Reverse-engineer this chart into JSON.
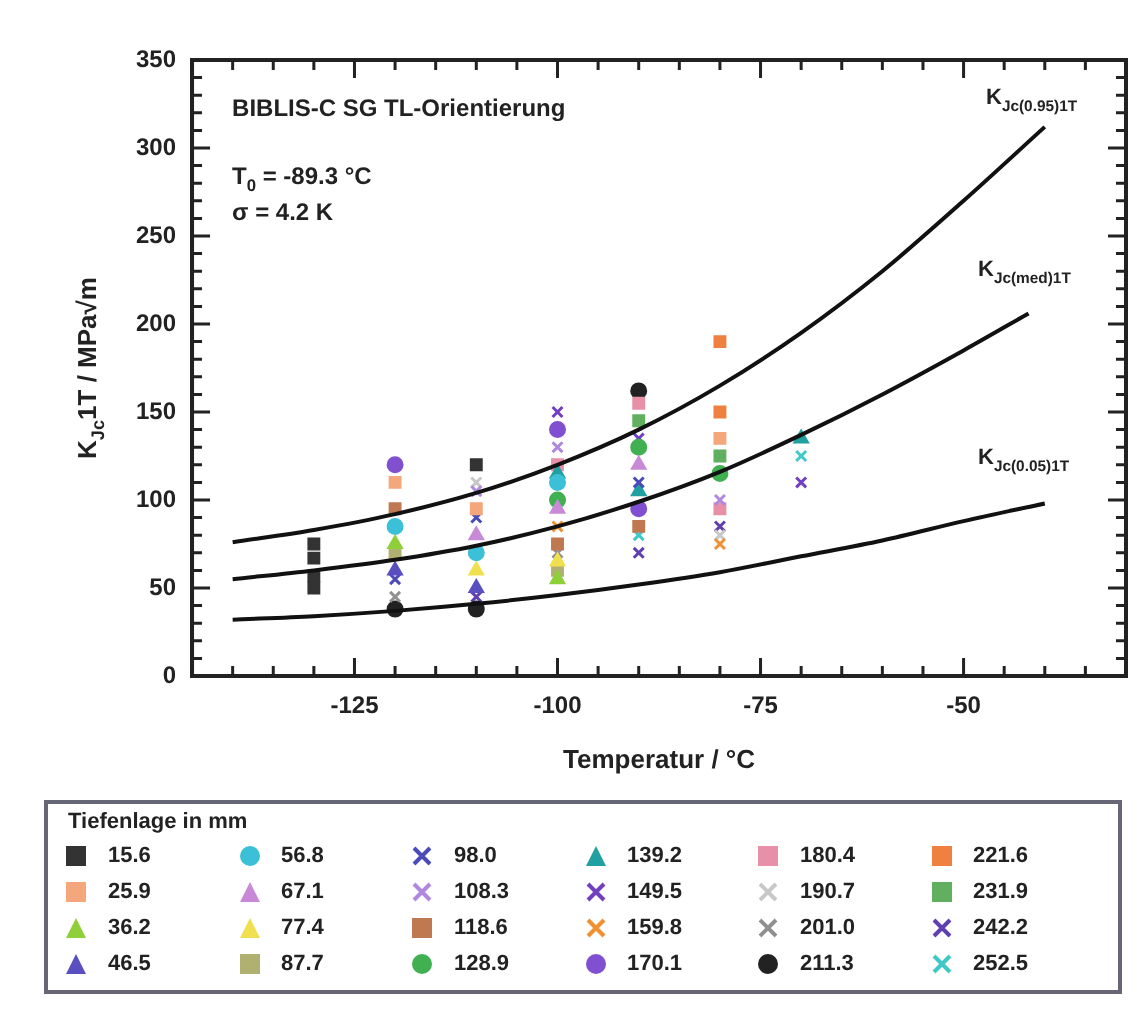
{
  "chart_data": {
    "type": "scatter",
    "xlabel": "Temperatur / °C",
    "ylabel": "K$_{Jc}$1T / MPa√m",
    "legend_title": "Tiefenlage in mm",
    "legend": "bottom",
    "grid": false,
    "xlim": [
      -145,
      -30
    ],
    "xticks": [
      {
        "value": -145,
        "label": null
      },
      {
        "value": -140,
        "label": null
      },
      {
        "value": -135,
        "label": null
      },
      {
        "value": -130,
        "label": null
      },
      -125,
      {
        "value": -120,
        "label": null
      },
      {
        "value": -115,
        "label": null
      },
      {
        "value": -110,
        "label": null
      },
      {
        "value": -105,
        "label": null
      },
      -100,
      {
        "value": -95,
        "label": null
      },
      {
        "value": -90,
        "label": null
      },
      {
        "value": -85,
        "label": null
      },
      {
        "value": -80,
        "label": null
      },
      -75,
      {
        "value": -70,
        "label": null
      },
      {
        "value": -65,
        "label": null
      },
      {
        "value": -60,
        "label": null
      },
      {
        "value": -55,
        "label": null
      },
      -50,
      {
        "value": -45,
        "label": null
      },
      {
        "value": -40,
        "label": null
      },
      {
        "value": -35,
        "label": null
      }
    ],
    "ylim": [
      0,
      350
    ],
    "yticks": [
      0,
      {
        "value": 10,
        "label": null
      },
      {
        "value": 20,
        "label": null
      },
      {
        "value": 30,
        "label": null
      },
      {
        "value": 40,
        "label": null
      },
      50,
      {
        "value": 60,
        "label": null
      },
      {
        "value": 70,
        "label": null
      },
      {
        "value": 80,
        "label": null
      },
      {
        "value": 90,
        "label": null
      },
      100,
      {
        "value": 110,
        "label": null
      },
      {
        "value": 120,
        "label": null
      },
      {
        "value": 130,
        "label": null
      },
      {
        "value": 140,
        "label": null
      },
      150,
      {
        "value": 160,
        "label": null
      },
      {
        "value": 170,
        "label": null
      },
      {
        "value": 180,
        "label": null
      },
      {
        "value": 190,
        "label": null
      },
      200,
      {
        "value": 210,
        "label": null
      },
      {
        "value": 220,
        "label": null
      },
      {
        "value": 230,
        "label": null
      },
      {
        "value": 240,
        "label": null
      },
      250,
      {
        "value": 260,
        "label": null
      },
      {
        "value": 270,
        "label": null
      },
      {
        "value": 280,
        "label": null
      },
      {
        "value": 290,
        "label": null
      },
      300,
      {
        "value": 310,
        "label": null
      },
      {
        "value": 320,
        "label": null
      },
      {
        "value": 330,
        "label": null
      },
      {
        "value": 340,
        "label": null
      },
      350
    ],
    "annotations": [
      "BIBLIS-C SG TL-Orientierung",
      "T$_{0}$ = -89.3 °C",
      "σ = 4.2 K",
      "K$_{Jc(0.95)1T}$",
      "K$_{Jc(med)1T}$",
      "K$_{Jc(0.05)1T}$"
    ],
    "series": [
      {
        "type": "line",
        "color": "#111111",
        "marker": "none",
        "line_style": "solid",
        "x": [
          -140,
          -130,
          -120,
          -110,
          -100,
          -90,
          -80,
          -70,
          -60,
          -50,
          -40
        ],
        "values": [
          76,
          83,
          92,
          104,
          120,
          140,
          165,
          195,
          230,
          270,
          312
        ]
      },
      {
        "type": "line",
        "color": "#111111",
        "marker": "none",
        "line_style": "solid",
        "x": [
          -140,
          -130,
          -120,
          -110,
          -100,
          -90,
          -80,
          -70,
          -60,
          -50,
          -42
        ],
        "values": [
          55,
          60,
          66,
          74,
          85,
          99,
          116,
          137,
          160,
          185,
          206
        ]
      },
      {
        "type": "line",
        "color": "#111111",
        "marker": "none",
        "line_style": "solid",
        "x": [
          -140,
          -130,
          -120,
          -110,
          -100,
          -90,
          -80,
          -70,
          -60,
          -50,
          -40
        ],
        "values": [
          32,
          34,
          37,
          41,
          46,
          52,
          59,
          68,
          77,
          88,
          98
        ]
      },
      {
        "name": "15.6",
        "color": "#333333",
        "marker": "square",
        "x": [
          -130,
          -130,
          -130,
          -130,
          -110
        ],
        "values": [
          50,
          57,
          67,
          75,
          120
        ]
      },
      {
        "name": "25.9",
        "color": "#f4a77a",
        "marker": "square",
        "x": [
          -120,
          -110,
          -80
        ],
        "values": [
          110,
          95,
          135
        ]
      },
      {
        "name": "36.2",
        "color": "#8fcf3a",
        "marker": "triangle",
        "x": [
          -120,
          -100
        ],
        "values": [
          75,
          55
        ]
      },
      {
        "name": "46.5",
        "color": "#5a4fc0",
        "marker": "triangle",
        "x": [
          -120,
          -110
        ],
        "values": [
          60,
          50
        ]
      },
      {
        "name": "56.8",
        "color": "#3cc0d8",
        "marker": "circle",
        "x": [
          -120,
          -110,
          -100
        ],
        "values": [
          85,
          70,
          110
        ]
      },
      {
        "name": "67.1",
        "color": "#c88ad8",
        "marker": "triangle",
        "x": [
          -110,
          -100,
          -90
        ],
        "values": [
          80,
          95,
          120
        ]
      },
      {
        "name": "77.4",
        "color": "#f0e050",
        "marker": "triangle",
        "x": [
          -110,
          -100
        ],
        "values": [
          60,
          65
        ]
      },
      {
        "name": "87.7",
        "color": "#b0b070",
        "marker": "square",
        "x": [
          -120,
          -100
        ],
        "values": [
          70,
          60
        ]
      },
      {
        "name": "98.0",
        "color": "#4a4ab8",
        "marker": "cross",
        "x": [
          -120,
          -110,
          -90
        ],
        "values": [
          55,
          90,
          110
        ]
      },
      {
        "name": "108.3",
        "color": "#b088e0",
        "marker": "cross",
        "x": [
          -110,
          -100,
          -80
        ],
        "values": [
          105,
          130,
          100
        ]
      },
      {
        "name": "118.6",
        "color": "#c07850",
        "marker": "square",
        "x": [
          -120,
          -100,
          -90
        ],
        "values": [
          95,
          75,
          85
        ]
      },
      {
        "name": "128.9",
        "color": "#40b050",
        "marker": "circle",
        "x": [
          -100,
          -90,
          -80
        ],
        "values": [
          100,
          130,
          115
        ]
      },
      {
        "name": "139.2",
        "color": "#20a0a0",
        "marker": "triangle",
        "x": [
          -100,
          -90,
          -70
        ],
        "values": [
          115,
          105,
          135
        ]
      },
      {
        "name": "149.5",
        "color": "#7040c0",
        "marker": "cross",
        "x": [
          -100,
          -90,
          -70
        ],
        "values": [
          150,
          135,
          110
        ]
      },
      {
        "name": "159.8",
        "color": "#f09030",
        "marker": "cross",
        "x": [
          -100,
          -80
        ],
        "values": [
          85,
          75
        ]
      },
      {
        "name": "170.1",
        "color": "#8050d0",
        "marker": "circle",
        "x": [
          -120,
          -100,
          -90
        ],
        "values": [
          120,
          140,
          95
        ]
      },
      {
        "name": "180.4",
        "color": "#e890a8",
        "marker": "square",
        "x": [
          -100,
          -90,
          -80
        ],
        "values": [
          120,
          155,
          95
        ]
      },
      {
        "name": "190.7",
        "color": "#c8c8c8",
        "marker": "cross",
        "x": [
          -110,
          -80
        ],
        "values": [
          110,
          80
        ]
      },
      {
        "name": "201.0",
        "color": "#909090",
        "marker": "cross",
        "x": [
          -120,
          -100
        ],
        "values": [
          45,
          70
        ]
      },
      {
        "name": "211.3",
        "color": "#222222",
        "marker": "circle",
        "x": [
          -120,
          -110,
          -90
        ],
        "values": [
          38,
          38,
          162
        ]
      },
      {
        "name": "221.6",
        "color": "#f08040",
        "marker": "square",
        "x": [
          -80,
          -80
        ],
        "values": [
          190,
          150
        ]
      },
      {
        "name": "231.9",
        "color": "#60b060",
        "marker": "square",
        "x": [
          -80,
          -90
        ],
        "values": [
          125,
          145
        ]
      },
      {
        "name": "242.2",
        "color": "#6040b0",
        "marker": "cross",
        "x": [
          -110,
          -90,
          -80
        ],
        "values": [
          45,
          70,
          85
        ]
      },
      {
        "name": "252.5",
        "color": "#40c8c8",
        "marker": "cross",
        "x": [
          -90,
          -70
        ],
        "values": [
          80,
          125
        ]
      }
    ]
  }
}
